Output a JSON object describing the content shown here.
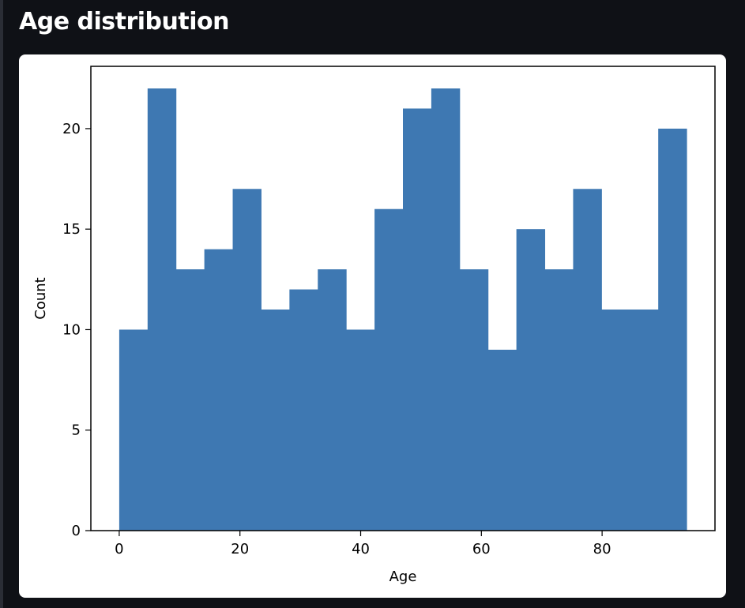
{
  "page": {
    "title": "Age distribution"
  },
  "chart_data": {
    "type": "bar",
    "title": "",
    "xlabel": "Age",
    "ylabel": "Count",
    "bin_edges": [
      0,
      4.7,
      9.4,
      14.1,
      18.8,
      23.5,
      28.2,
      32.9,
      37.6,
      42.3,
      47,
      51.7,
      56.4,
      61.1,
      65.8,
      70.5,
      75.2,
      79.9,
      84.6,
      89.3,
      94
    ],
    "values": [
      10,
      22,
      13,
      14,
      17,
      11,
      12,
      13,
      10,
      16,
      21,
      22,
      13,
      9,
      15,
      13,
      17,
      11,
      11,
      20
    ],
    "xlim": [
      -4.7,
      98.7
    ],
    "ylim": [
      0,
      23.1
    ],
    "x_ticks": [
      0,
      20,
      40,
      60,
      80
    ],
    "x_tick_labels": [
      "0",
      "20",
      "40",
      "60",
      "80"
    ],
    "y_ticks": [
      0,
      5,
      10,
      15,
      20
    ],
    "y_tick_labels": [
      "0",
      "5",
      "10",
      "15",
      "20"
    ],
    "bar_color": "#3e78b2",
    "grid": false,
    "legend": "none"
  }
}
